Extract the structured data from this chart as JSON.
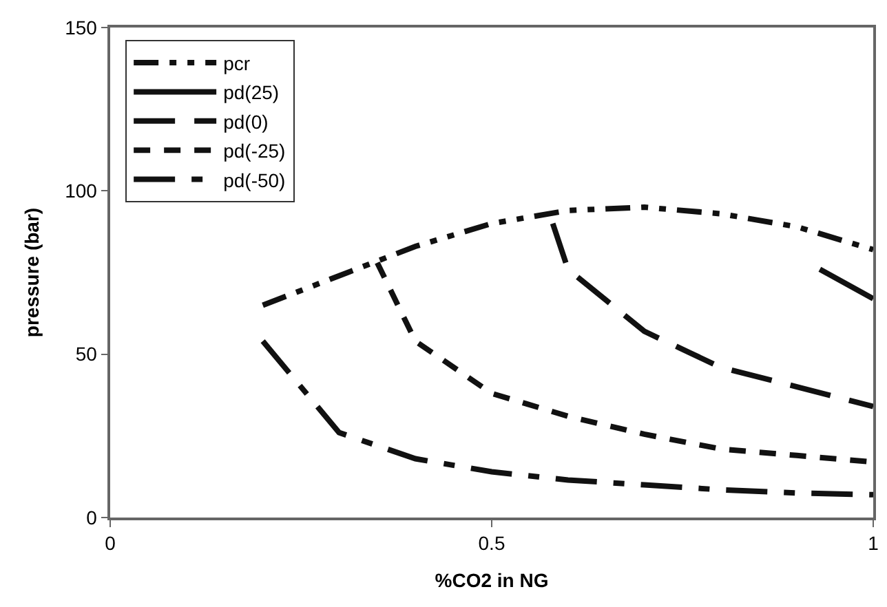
{
  "chart_data": {
    "type": "line",
    "xlabel": "%CO2 in NG",
    "ylabel": "pressure (bar)",
    "xlim": [
      0,
      1
    ],
    "xticks": [
      0,
      0.5,
      1
    ],
    "ylim": [
      0,
      150
    ],
    "yticks": [
      0,
      50,
      100,
      150
    ],
    "legend": "top left",
    "marker": "none",
    "series": [
      {
        "name": "pcr",
        "color": "#111111",
        "line_style": "dashdot",
        "x": [
          0.2,
          0.3,
          0.4,
          0.5,
          0.6,
          0.7,
          0.8,
          0.9,
          1.0
        ],
        "values": [
          65,
          74,
          83,
          90,
          94,
          95,
          93,
          89,
          82
        ]
      },
      {
        "name": "pd(25)",
        "color": "#111111",
        "line_style": "solid",
        "x": [
          0.93,
          1.0
        ],
        "values": [
          76,
          67
        ]
      },
      {
        "name": "pd(0)",
        "color": "#111111",
        "line_style": "longdash",
        "x": [
          0.58,
          0.6,
          0.7,
          0.8,
          0.9,
          1.0
        ],
        "values": [
          90,
          76,
          57,
          46,
          40,
          34
        ]
      },
      {
        "name": "pd(-25)",
        "color": "#111111",
        "line_style": "dashed",
        "x": [
          0.35,
          0.4,
          0.5,
          0.6,
          0.7,
          0.8,
          0.9,
          1.0
        ],
        "values": [
          78,
          54,
          38,
          31,
          25.5,
          21,
          19,
          17
        ]
      },
      {
        "name": "pd(-50)",
        "color": "#111111",
        "line_style": "longdashdot",
        "x": [
          0.2,
          0.3,
          0.4,
          0.5,
          0.6,
          0.7,
          0.8,
          0.9,
          1.0
        ],
        "values": [
          54,
          26,
          18,
          14,
          11.5,
          10,
          8.5,
          7.5,
          7
        ]
      }
    ]
  }
}
